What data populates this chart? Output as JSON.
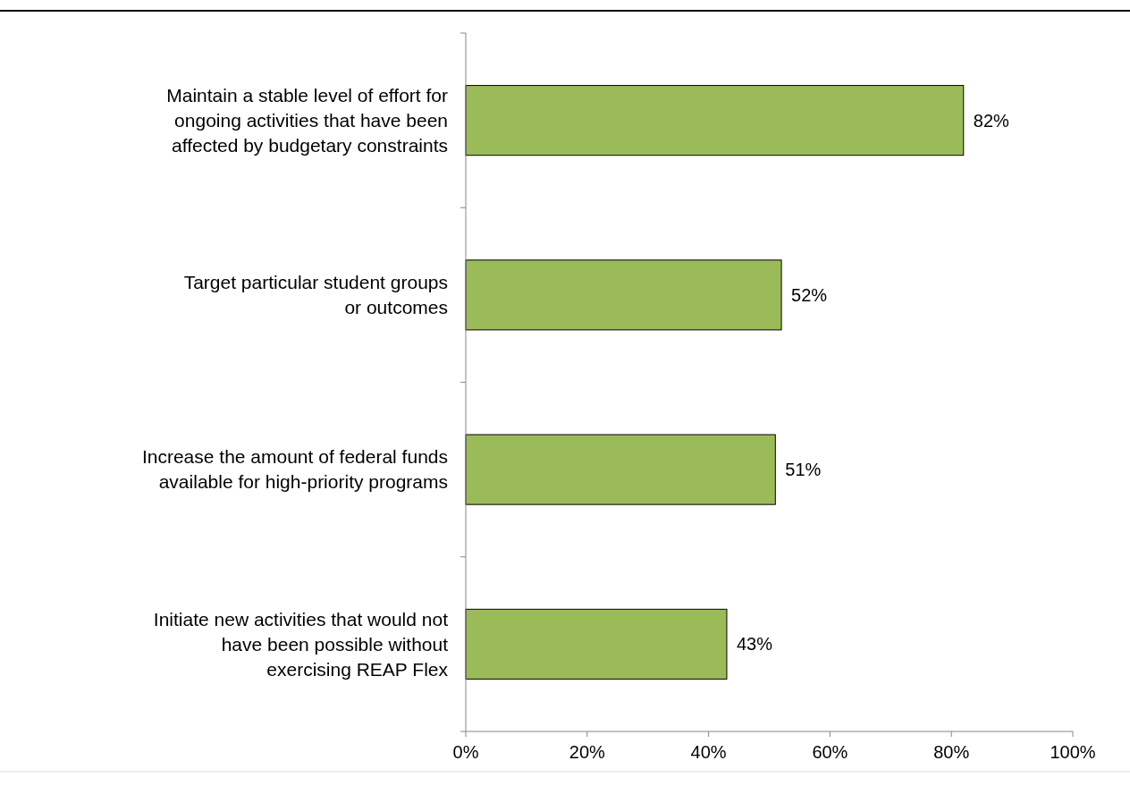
{
  "chart_data": {
    "type": "bar",
    "orientation": "horizontal",
    "categories": [
      "Maintain a stable level of effort for\nongoing activities that have been\naffected by budgetary constraints",
      "Target particular student groups\nor outcomes",
      "Increase the amount of federal funds\navailable for high-priority programs",
      "Initiate new activities that would not\nhave been possible without\nexercising REAP Flex"
    ],
    "values": [
      82,
      52,
      51,
      43
    ],
    "value_labels": [
      "82%",
      "52%",
      "51%",
      "43%"
    ],
    "color": "#9bbb59",
    "xlim": [
      0,
      100
    ],
    "xticks": [
      {
        "value": 0,
        "label": "0%"
      },
      {
        "value": 20,
        "label": "20%"
      },
      {
        "value": 40,
        "label": "40%"
      },
      {
        "value": 60,
        "label": "60%"
      },
      {
        "value": 80,
        "label": "80%"
      },
      {
        "value": 100,
        "label": "100%"
      }
    ],
    "grid": false
  }
}
